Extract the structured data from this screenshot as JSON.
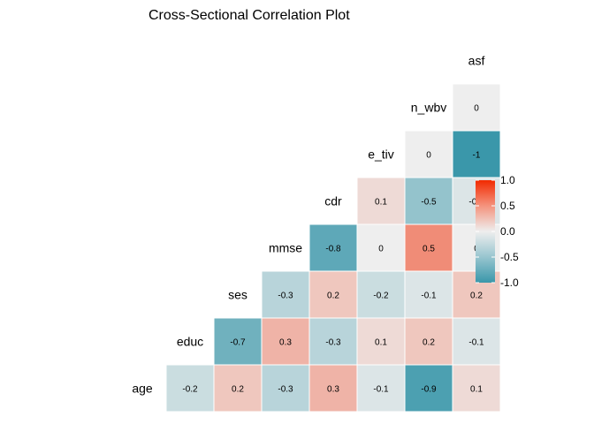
{
  "chart_data": {
    "type": "heatmap",
    "title": "Cross-Sectional Correlation Plot",
    "variables": [
      "age",
      "educ",
      "ses",
      "mmse",
      "cdr",
      "e_tiv",
      "n_wbv",
      "asf"
    ],
    "columns": [
      "age",
      "educ",
      "ses",
      "mmse",
      "cdr",
      "e_tiv",
      "n_wbv",
      "asf"
    ],
    "matrix": [
      [
        -0.2,
        0.2,
        -0.3,
        0.3,
        -0.1,
        -0.9,
        0.1
      ],
      [
        -0.7,
        0.3,
        -0.3,
        0.1,
        0.2,
        -0.1
      ],
      [
        -0.3,
        0.2,
        -0.2,
        -0.1,
        0.2
      ],
      [
        -0.8,
        0,
        0.5,
        0
      ],
      [
        0.1,
        -0.5,
        -0.1
      ],
      [
        0,
        -1
      ],
      [
        0
      ]
    ],
    "legend": {
      "ticks": [
        1.0,
        0.5,
        0.0,
        -0.5,
        -1.0
      ],
      "tick_labels": [
        "1.0",
        "0.5",
        "0.0",
        "-0.5",
        "-1.0"
      ],
      "position": "right",
      "range": [
        -1,
        1
      ]
    },
    "colors": {
      "low": "#3A97AA",
      "mid": "#EEEEEE",
      "high": "#F22A00"
    },
    "grid": false
  }
}
